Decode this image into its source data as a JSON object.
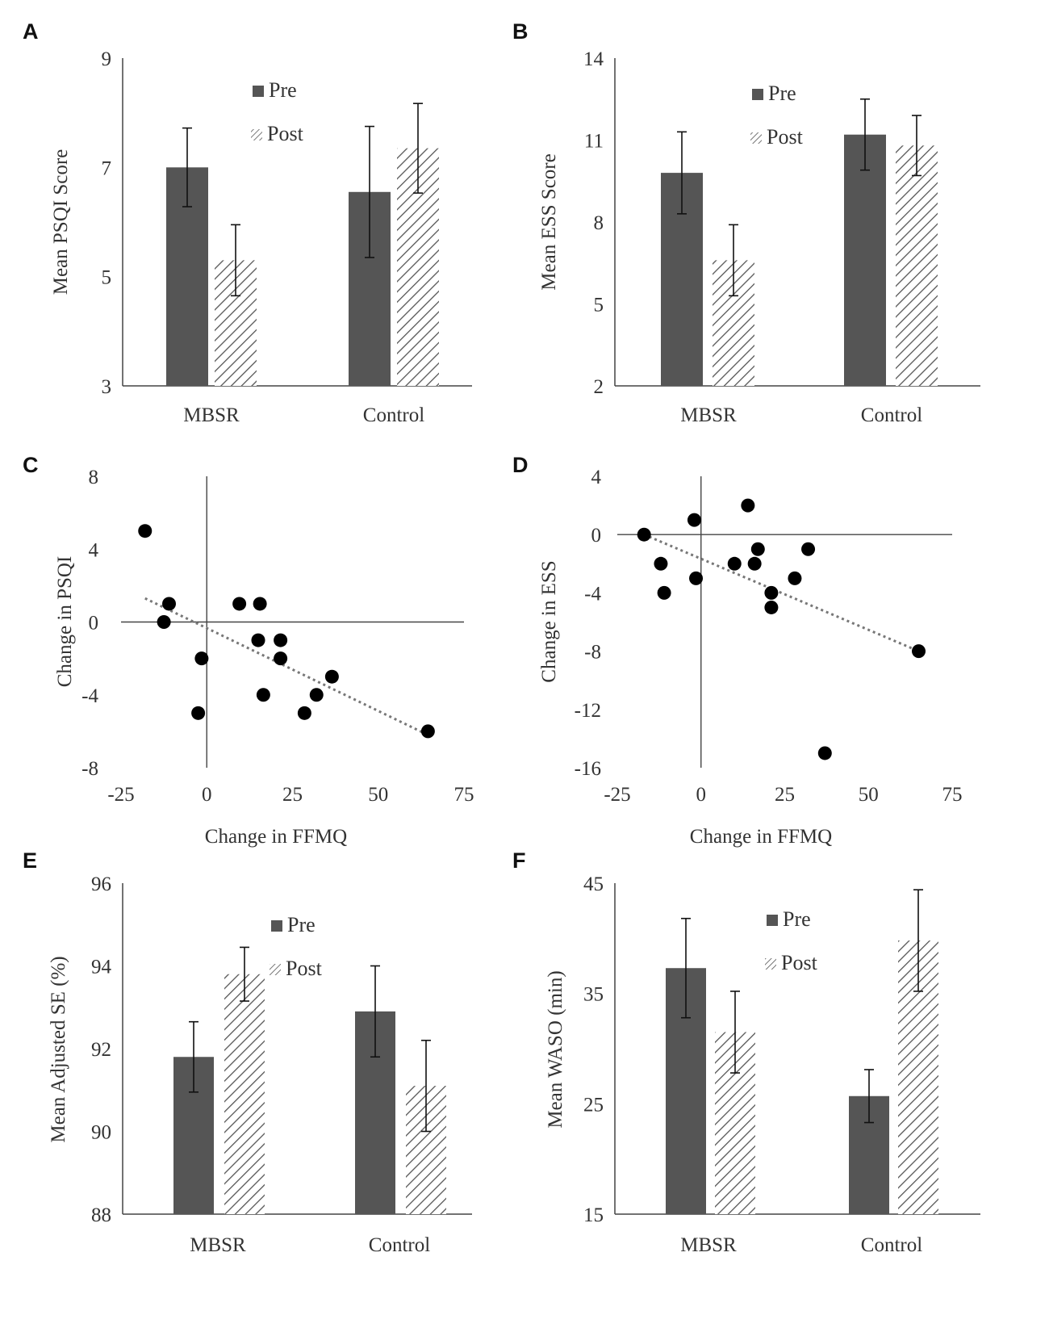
{
  "colors": {
    "pre": "#555555",
    "post_hatch": "#555555",
    "axis": "#333333",
    "point": "#000000",
    "trend": "#777777"
  },
  "chart_data": [
    {
      "panel": "A",
      "type": "bar",
      "categories": [
        "MBSR",
        "Control"
      ],
      "series": [
        {
          "name": "Pre",
          "values": [
            7.0,
            6.55
          ],
          "errors": [
            0.72,
            1.2
          ]
        },
        {
          "name": "Post",
          "values": [
            5.3,
            7.35
          ],
          "errors": [
            0.65,
            0.82
          ]
        }
      ],
      "ylabel": "Mean PSQI Score",
      "xlabel": "",
      "ylim": [
        3,
        9
      ],
      "yticks": [
        3,
        5,
        7,
        9
      ],
      "legend": "top-center"
    },
    {
      "panel": "B",
      "type": "bar",
      "categories": [
        "MBSR",
        "Control"
      ],
      "series": [
        {
          "name": "Pre",
          "values": [
            9.8,
            11.2
          ],
          "errors": [
            1.5,
            1.3
          ]
        },
        {
          "name": "Post",
          "values": [
            6.6,
            10.8
          ],
          "errors": [
            1.3,
            1.1
          ]
        }
      ],
      "ylabel": "Mean ESS Score",
      "xlabel": "",
      "ylim": [
        2,
        14
      ],
      "yticks": [
        2,
        5,
        8,
        11,
        14
      ],
      "legend": "top-center"
    },
    {
      "panel": "C",
      "type": "scatter",
      "points": [
        {
          "x": -18,
          "y": 5
        },
        {
          "x": -11,
          "y": 1
        },
        {
          "x": -12.5,
          "y": 0
        },
        {
          "x": -1.5,
          "y": -2
        },
        {
          "x": -2.5,
          "y": -5
        },
        {
          "x": 9.5,
          "y": 1
        },
        {
          "x": 15.5,
          "y": 1
        },
        {
          "x": 15,
          "y": -1
        },
        {
          "x": 21.5,
          "y": -1
        },
        {
          "x": 21.5,
          "y": -2
        },
        {
          "x": 16.5,
          "y": -4
        },
        {
          "x": 32,
          "y": -4
        },
        {
          "x": 36.5,
          "y": -3
        },
        {
          "x": 28.5,
          "y": -5
        },
        {
          "x": 64.5,
          "y": -6
        }
      ],
      "trendline": {
        "x": [
          -18,
          64.5
        ],
        "y": [
          1.3,
          -6.2
        ]
      },
      "xlabel": "Change in FFMQ",
      "ylabel": "Change in PSQI",
      "xlim": [
        -25,
        75
      ],
      "xticks": [
        -25,
        0,
        25,
        50,
        75
      ],
      "ylim": [
        -8,
        8
      ],
      "yticks": [
        -8,
        -4,
        0,
        4,
        8
      ]
    },
    {
      "panel": "D",
      "type": "scatter",
      "points": [
        {
          "x": -17,
          "y": 0
        },
        {
          "x": -12,
          "y": -2
        },
        {
          "x": -11,
          "y": -4
        },
        {
          "x": -2,
          "y": 1
        },
        {
          "x": -1.5,
          "y": -3
        },
        {
          "x": 10,
          "y": -2
        },
        {
          "x": 14,
          "y": 2
        },
        {
          "x": 16,
          "y": -2
        },
        {
          "x": 17,
          "y": -1
        },
        {
          "x": 21,
          "y": -4
        },
        {
          "x": 21,
          "y": -5
        },
        {
          "x": 28,
          "y": -3
        },
        {
          "x": 32,
          "y": -1
        },
        {
          "x": 37,
          "y": -15
        },
        {
          "x": 65,
          "y": -8
        }
      ],
      "trendline": {
        "x": [
          -17,
          65
        ],
        "y": [
          0,
          -8
        ]
      },
      "xlabel": "Change in FFMQ",
      "ylabel": "Change in ESS",
      "xlim": [
        -25,
        75
      ],
      "xticks": [
        -25,
        0,
        25,
        50,
        75
      ],
      "ylim": [
        -16,
        4
      ],
      "yticks": [
        -16,
        -12,
        -8,
        -4,
        0,
        4
      ]
    },
    {
      "panel": "E",
      "type": "bar",
      "categories": [
        "MBSR",
        "Control"
      ],
      "series": [
        {
          "name": "Pre",
          "values": [
            91.8,
            92.9
          ],
          "errors": [
            0.85,
            1.1
          ]
        },
        {
          "name": "Post",
          "values": [
            93.8,
            91.1
          ],
          "errors": [
            0.65,
            1.1
          ]
        }
      ],
      "ylabel": "Mean Adjusted SE (%)",
      "xlabel": "",
      "ylim": [
        88,
        96
      ],
      "yticks": [
        88,
        90,
        92,
        94,
        96
      ],
      "legend": "top-center"
    },
    {
      "panel": "F",
      "type": "bar",
      "categories": [
        "MBSR",
        "Control"
      ],
      "series": [
        {
          "name": "Pre",
          "values": [
            37.3,
            25.7
          ],
          "errors": [
            4.5,
            2.4
          ]
        },
        {
          "name": "Post",
          "values": [
            31.5,
            39.8
          ],
          "errors": [
            3.7,
            4.6
          ]
        }
      ],
      "ylabel": "Mean WASO (min)",
      "xlabel": "",
      "ylim": [
        15,
        45
      ],
      "yticks": [
        15,
        25,
        35,
        45
      ],
      "legend": "top-center"
    }
  ]
}
